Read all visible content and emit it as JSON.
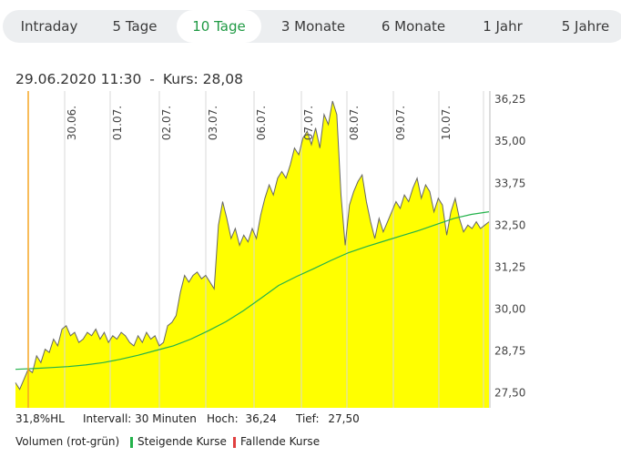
{
  "tabs": [
    {
      "label": "Intraday",
      "active": false
    },
    {
      "label": "5 Tage",
      "active": false
    },
    {
      "label": "10 Tage",
      "active": true
    },
    {
      "label": "3 Monate",
      "active": false
    },
    {
      "label": "6 Monate",
      "active": false
    },
    {
      "label": "1 Jahr",
      "active": false
    },
    {
      "label": "5 Jahre",
      "active": false
    }
  ],
  "info": {
    "date": "29.06.2020 11:30",
    "sep": "-",
    "kurs_label": "Kurs:",
    "kurs_value": "28,08"
  },
  "stats": {
    "hl": "31,8%HL",
    "interval": "Intervall: 30 Minuten",
    "hoch_label": "Hoch:",
    "hoch_value": "36,24",
    "tief_label": "Tief:",
    "tief_value": "27,50"
  },
  "legend": {
    "volume": "Volumen (rot-grün)",
    "rising": "Steigende Kurse",
    "falling": "Fallende Kurse"
  },
  "colors": {
    "fill": "#ffff00",
    "price_line": "#666666",
    "ma_line": "#23b24b",
    "cursor": "#f5a623",
    "active_tab": "#1f9a44",
    "rising": "#23b24b",
    "falling": "#e04040"
  },
  "chart_data": {
    "type": "area",
    "y_ticks": [
      "36,25",
      "35,00",
      "33,75",
      "32,50",
      "31,25",
      "30,00",
      "28,75",
      "27,50"
    ],
    "ylim": [
      27.05,
      36.5
    ],
    "x_labels": [
      "30.06.",
      "01.07.",
      "02.07.",
      "03.07.",
      "06.07.",
      "07.07.",
      "08.07.",
      "09.07.",
      "10.07."
    ],
    "price": [
      27.8,
      27.6,
      27.9,
      28.2,
      28.1,
      28.6,
      28.4,
      28.8,
      28.7,
      29.1,
      28.9,
      29.4,
      29.5,
      29.2,
      29.3,
      29.0,
      29.1,
      29.3,
      29.2,
      29.4,
      29.1,
      29.3,
      29.0,
      29.2,
      29.1,
      29.3,
      29.2,
      29.0,
      28.9,
      29.2,
      29.0,
      29.3,
      29.1,
      29.2,
      28.9,
      29.0,
      29.5,
      29.6,
      29.8,
      30.5,
      31.0,
      30.8,
      31.0,
      31.1,
      30.9,
      31.0,
      30.8,
      30.6,
      32.5,
      33.2,
      32.7,
      32.1,
      32.4,
      31.9,
      32.2,
      32.0,
      32.4,
      32.1,
      32.8,
      33.3,
      33.7,
      33.4,
      33.9,
      34.1,
      33.9,
      34.3,
      34.8,
      34.6,
      35.1,
      35.3,
      34.9,
      35.4,
      34.8,
      35.8,
      35.5,
      36.2,
      35.8,
      33.4,
      31.9,
      33.1,
      33.5,
      33.8,
      34.0,
      33.2,
      32.6,
      32.1,
      32.7,
      32.3,
      32.6,
      32.9,
      33.2,
      33.0,
      33.4,
      33.2,
      33.6,
      33.9,
      33.3,
      33.7,
      33.5,
      32.9,
      33.3,
      33.1,
      32.2,
      32.9,
      33.3,
      32.7,
      32.3,
      32.5,
      32.4,
      32.6,
      32.4,
      32.5,
      32.6
    ],
    "moving_average": [
      28.2,
      28.22,
      28.25,
      28.28,
      28.33,
      28.4,
      28.5,
      28.62,
      28.76,
      28.9,
      29.1,
      29.35,
      29.62,
      29.95,
      30.32,
      30.7,
      30.96,
      31.2,
      31.45,
      31.68,
      31.86,
      32.02,
      32.18,
      32.34,
      32.52,
      32.7,
      32.82,
      32.9
    ],
    "cursor": {
      "date": "29.06.2020 11:30",
      "value": 28.08
    }
  }
}
